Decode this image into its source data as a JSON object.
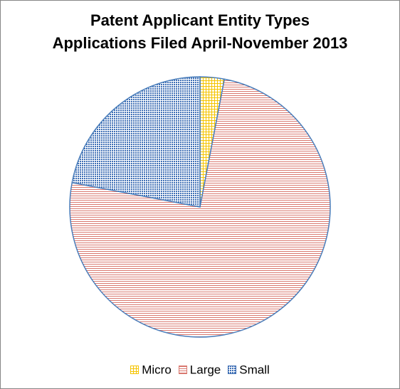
{
  "chart_data": {
    "type": "pie",
    "title": [
      "Patent Applicant Entity Types",
      "Applications Filed April-November 2013"
    ],
    "slices": [
      {
        "name": "Micro",
        "value": 3,
        "color": "#f5c400",
        "pattern": "grid"
      },
      {
        "name": "Large",
        "value": 75,
        "color": "#d9786f",
        "pattern": "horizontal-lines"
      },
      {
        "name": "Small",
        "value": 22,
        "color": "#3f6fb5",
        "pattern": "dots"
      }
    ],
    "start_angle": "12 o'clock",
    "direction": "clockwise",
    "slice_border_color": "#4a7ebb",
    "legend_position": "bottom"
  }
}
